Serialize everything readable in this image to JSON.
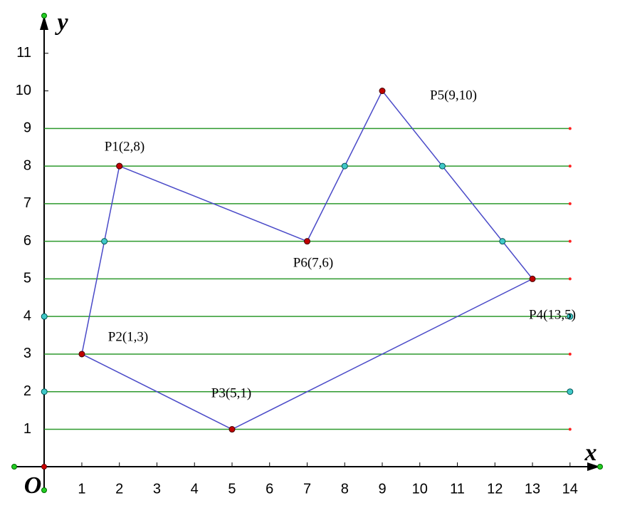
{
  "chart_data": {
    "type": "polygon",
    "x_label": "x",
    "y_label": "y",
    "origin_label": "O",
    "xlim": [
      -0.8,
      14.8
    ],
    "ylim": [
      -0.62,
      12
    ],
    "xticks": [
      1,
      2,
      3,
      4,
      5,
      6,
      7,
      8,
      9,
      10,
      11,
      12,
      13,
      14
    ],
    "yticks": [
      1,
      2,
      3,
      4,
      5,
      6,
      7,
      8,
      9,
      10,
      11
    ],
    "vertices": {
      "x": [
        2,
        1,
        5,
        13,
        9,
        7,
        2
      ],
      "y": [
        8,
        3,
        1,
        5,
        10,
        6,
        8
      ],
      "color": "#4a4ac8",
      "marker_color": "#c00000"
    },
    "scanlines": [
      1,
      2,
      3,
      4,
      5,
      6,
      7,
      8,
      9
    ],
    "scanline_range": [
      0,
      14
    ],
    "scanline_color": "#2e9a2e",
    "scanline_end_color": "#ff2020",
    "intersections": {
      "x": [
        1.6,
        8,
        10.6,
        12.2,
        0,
        0,
        14,
        14
      ],
      "y": [
        6,
        8,
        8,
        6,
        4,
        2,
        2,
        4
      ],
      "color": "#40c8c8"
    },
    "annotations": [
      "P1(2,8)",
      "P5(9,10)",
      "P6(7,6)",
      "P2(1,3)",
      "P4(13,5)",
      "P3(5,1)"
    ]
  }
}
